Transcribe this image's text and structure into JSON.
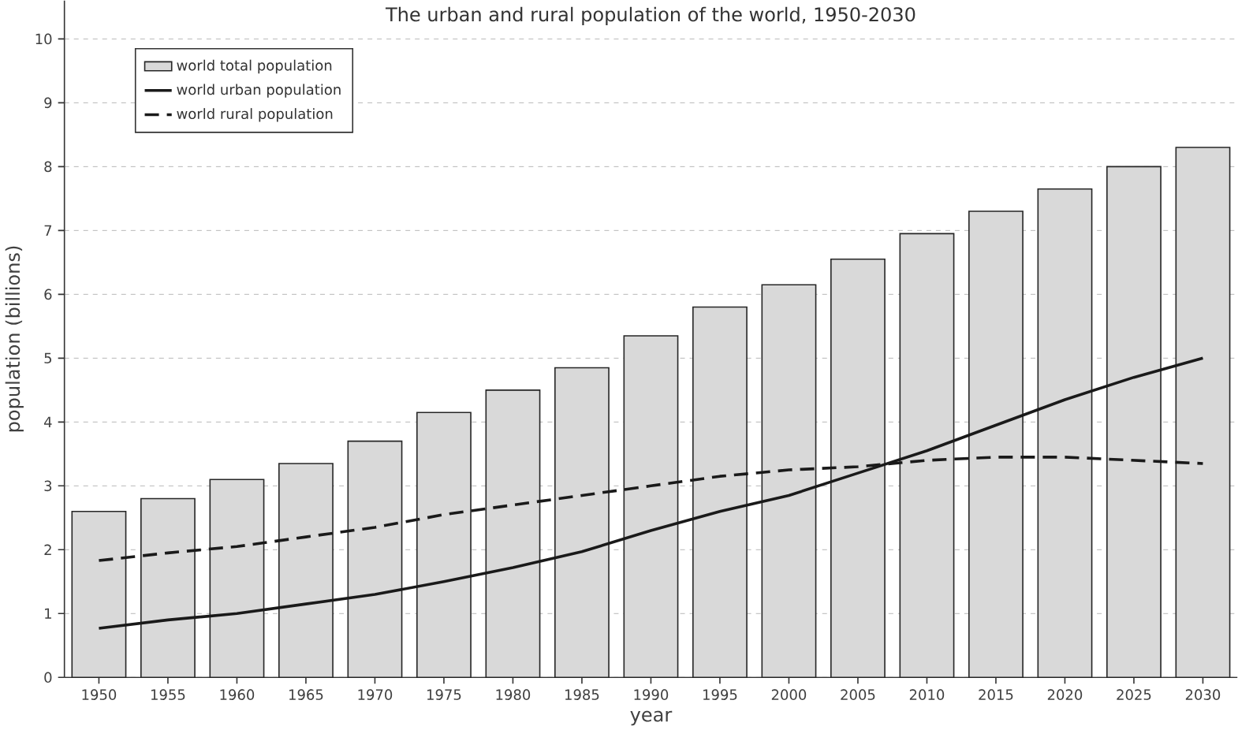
{
  "chart_data": {
    "type": "bar",
    "title": "The urban and rural population of the world, 1950-2030",
    "xlabel": "year",
    "ylabel": "population (billions)",
    "categories": [
      "1950",
      "1955",
      "1960",
      "1965",
      "1970",
      "1975",
      "1980",
      "1985",
      "1990",
      "1995",
      "2000",
      "2005",
      "2010",
      "2015",
      "2020",
      "2025",
      "2030"
    ],
    "series": [
      {
        "name": "world total population",
        "color": "#d9d9d9",
        "values": [
          2.6,
          2.8,
          3.1,
          3.35,
          3.7,
          4.15,
          4.5,
          4.85,
          5.35,
          5.8,
          6.15,
          6.55,
          6.95,
          7.3,
          7.65,
          8.0,
          8.3
        ]
      },
      {
        "name": "world urban population",
        "type": "line",
        "color": "#1a1a1a",
        "line_style": "solid",
        "values": [
          0.77,
          0.9,
          1.0,
          1.15,
          1.3,
          1.5,
          1.72,
          1.97,
          2.3,
          2.6,
          2.85,
          3.2,
          3.55,
          3.95,
          4.35,
          4.7,
          5.0
        ]
      },
      {
        "name": "world rural population",
        "type": "line",
        "color": "#1a1a1a",
        "line_style": "dashed",
        "values": [
          1.83,
          1.95,
          2.05,
          2.2,
          2.35,
          2.55,
          2.7,
          2.85,
          3.0,
          3.15,
          3.25,
          3.3,
          3.4,
          3.45,
          3.45,
          3.4,
          3.35
        ]
      }
    ],
    "ylim": [
      0,
      10.6
    ],
    "yticks": [
      0,
      1,
      2,
      3,
      4,
      5,
      6,
      7,
      8,
      9,
      10
    ],
    "grid": "y",
    "legend": "top left",
    "marker": "none"
  }
}
